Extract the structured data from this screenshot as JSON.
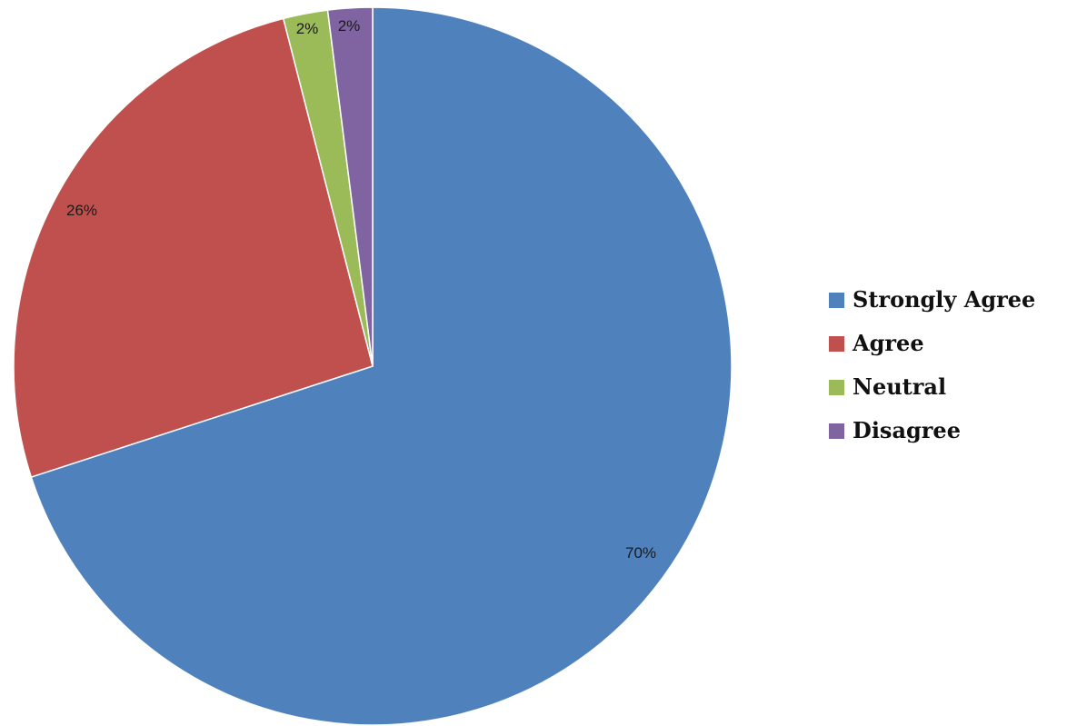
{
  "chart_data": {
    "type": "pie",
    "start_angle_deg": 0,
    "direction": "clockwise",
    "slices": [
      {
        "name": "Strongly Agree",
        "value": 70,
        "label": "70%",
        "color": "#4F81BD"
      },
      {
        "name": "Agree",
        "value": 26,
        "label": "26%",
        "color": "#C0504D"
      },
      {
        "name": "Neutral",
        "value": 2,
        "label": "2%",
        "color": "#9BBB59"
      },
      {
        "name": "Disagree",
        "value": 2,
        "label": "2%",
        "color": "#8064A2"
      }
    ],
    "legend_position": "right"
  }
}
